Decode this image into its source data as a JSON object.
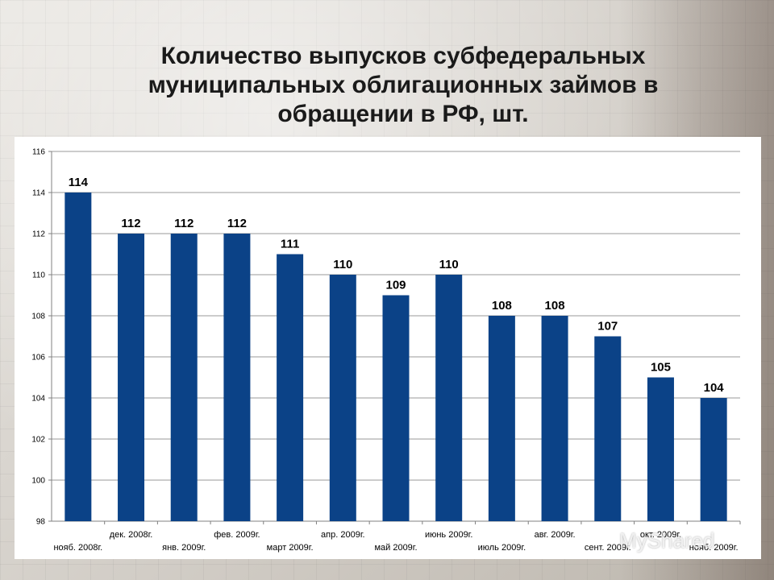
{
  "slide": {
    "title": "Количество выпусков субфедеральных муниципальных облигационных займов в обращении в РФ, шт.",
    "watermark": "MyShared"
  },
  "chart_data": {
    "type": "bar",
    "title": "Количество выпусков субфедеральных муниципальных облигационных займов в обращении в РФ, шт.",
    "categories": [
      "нояб. 2008г.",
      "дек. 2008г.",
      "янв. 2009г.",
      "фев. 2009г.",
      "март 2009г.",
      "апр. 2009г.",
      "май 2009г.",
      "июнь 2009г.",
      "июль 2009г.",
      "авг. 2009г.",
      "сент. 2009г.",
      "окт. 2009г.",
      "нояб. 2009г."
    ],
    "values": [
      114,
      112,
      112,
      112,
      111,
      110,
      109,
      110,
      108,
      108,
      107,
      105,
      104
    ],
    "ylim": [
      98,
      116
    ],
    "yticks": [
      98,
      100,
      102,
      104,
      106,
      108,
      110,
      112,
      114,
      116
    ],
    "xlabel": "",
    "ylabel": "",
    "grid": true,
    "data_labels": true,
    "bar_color": "#0b4287",
    "legend": "none"
  }
}
